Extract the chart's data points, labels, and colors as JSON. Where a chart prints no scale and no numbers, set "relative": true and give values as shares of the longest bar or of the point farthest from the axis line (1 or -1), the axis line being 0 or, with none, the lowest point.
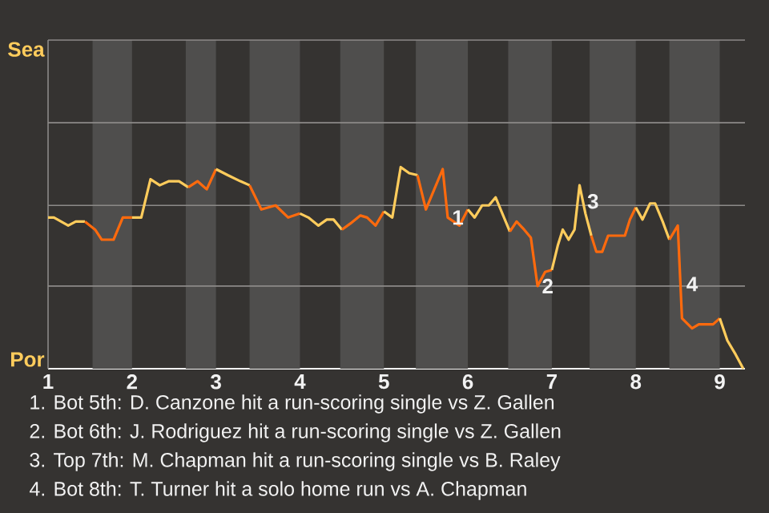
{
  "chart_data": {
    "type": "line",
    "relative": true,
    "xlim": [
      1,
      9.3
    ],
    "xticks": [
      1,
      2,
      3,
      4,
      5,
      6,
      7,
      8,
      9
    ],
    "ref_lines": [
      {
        "axis": "y",
        "value": 0.41,
        "color": "#8c8a88"
      },
      {
        "axis": "y",
        "value": 0.81,
        "color": "#8c8a88"
      },
      {
        "axis": "y",
        "value": 1.22,
        "color": "#8c8a88"
      },
      {
        "axis": "y",
        "value": 1.63,
        "color": "#8c8a88"
      }
    ],
    "bands": [
      {
        "axis": "x",
        "from": 1.53,
        "to": 2,
        "color": "#4f4e4d"
      },
      {
        "axis": "x",
        "from": 2.64,
        "to": 3,
        "color": "#4f4e4d"
      },
      {
        "axis": "x",
        "from": 3.4,
        "to": 4,
        "color": "#4f4e4d"
      },
      {
        "axis": "x",
        "from": 4.48,
        "to": 5,
        "color": "#4f4e4d"
      },
      {
        "axis": "x",
        "from": 5.38,
        "to": 6,
        "color": "#4f4e4d"
      },
      {
        "axis": "x",
        "from": 6.48,
        "to": 7,
        "color": "#4f4e4d"
      },
      {
        "axis": "x",
        "from": 7.45,
        "to": 8,
        "color": "#4f4e4d"
      },
      {
        "axis": "x",
        "from": 8.4,
        "to": 9,
        "color": "#4f4e4d"
      }
    ],
    "series": [
      {
        "color": "#ffcc5c",
        "x": [
          1.0,
          1.07,
          1.24,
          1.33,
          1.44
        ],
        "values": [
          0.75,
          0.75,
          0.71,
          0.73,
          0.73
        ]
      },
      {
        "color": "#ff6a0d",
        "x": [
          1.44,
          1.56,
          1.64,
          1.78,
          1.89,
          2.0
        ],
        "values": [
          0.73,
          0.69,
          0.64,
          0.64,
          0.75,
          0.75
        ]
      },
      {
        "color": "#ffcc5c",
        "x": [
          2.0,
          2.11,
          2.22,
          2.33,
          2.44,
          2.56,
          2.67
        ],
        "values": [
          0.75,
          0.75,
          0.94,
          0.91,
          0.93,
          0.93,
          0.9
        ]
      },
      {
        "color": "#ff6a0d",
        "x": [
          2.67,
          2.78,
          2.89,
          3.0
        ],
        "values": [
          0.9,
          0.93,
          0.89,
          0.99
        ]
      },
      {
        "color": "#ffcc5c",
        "x": [
          3.0,
          3.14,
          3.29,
          3.4
        ],
        "values": [
          0.99,
          0.96,
          0.93,
          0.91
        ]
      },
      {
        "color": "#ff6a0d",
        "x": [
          3.4,
          3.54,
          3.71,
          3.86,
          4.0
        ],
        "values": [
          0.91,
          0.79,
          0.81,
          0.75,
          0.77
        ]
      },
      {
        "color": "#ffcc5c",
        "x": [
          4.0,
          4.1,
          4.22,
          4.32,
          4.4,
          4.5
        ],
        "values": [
          0.77,
          0.75,
          0.71,
          0.74,
          0.74,
          0.69
        ]
      },
      {
        "color": "#ff6a0d",
        "x": [
          4.5,
          4.6,
          4.72,
          4.8,
          4.9,
          5.0
        ],
        "values": [
          0.69,
          0.72,
          0.76,
          0.75,
          0.71,
          0.78
        ]
      },
      {
        "color": "#ffcc5c",
        "x": [
          5.0,
          5.1,
          5.2,
          5.3,
          5.4
        ],
        "values": [
          0.78,
          0.75,
          1,
          0.97,
          0.96
        ]
      },
      {
        "color": "#ff6a0d",
        "x": [
          5.4,
          5.5,
          5.6,
          5.7,
          5.76,
          5.9,
          6.0
        ],
        "values": [
          0.96,
          0.79,
          0.89,
          0.99,
          0.75,
          0.71,
          0.79
        ]
      },
      {
        "color": "#ffcc5c",
        "x": [
          6.0,
          6.08,
          6.17,
          6.25,
          6.33,
          6.5
        ],
        "values": [
          0.79,
          0.75,
          0.81,
          0.81,
          0.85,
          0.68
        ]
      },
      {
        "color": "#ff6a0d",
        "x": [
          6.5,
          6.58,
          6.67,
          6.75,
          6.83,
          6.92,
          7.0
        ],
        "values": [
          0.68,
          0.73,
          0.69,
          0.65,
          0.41,
          0.48,
          0.49
        ]
      },
      {
        "color": "#ffcc5c",
        "x": [
          7.0,
          7.07,
          7.13,
          7.2,
          7.27,
          7.33,
          7.4,
          7.47
        ],
        "values": [
          0.49,
          0.61,
          0.69,
          0.64,
          0.69,
          0.91,
          0.77,
          0.66
        ]
      },
      {
        "color": "#ff6a0d",
        "x": [
          7.47,
          7.53,
          7.6,
          7.67,
          7.87,
          7.93,
          8.0
        ],
        "values": [
          0.66,
          0.58,
          0.58,
          0.66,
          0.66,
          0.74,
          0.8
        ]
      },
      {
        "color": "#ffcc5c",
        "x": [
          8.0,
          8.08,
          8.17,
          8.23,
          8.32,
          8.4
        ],
        "values": [
          0.8,
          0.74,
          0.82,
          0.82,
          0.73,
          0.64
        ]
      },
      {
        "color": "#ff6a0d",
        "x": [
          8.4,
          8.5,
          8.55,
          8.67,
          8.75,
          8.92,
          9.0
        ],
        "values": [
          0.64,
          0.71,
          0.25,
          0.2,
          0.22,
          0.22,
          0.25
        ]
      },
      {
        "color": "#ffcc5c",
        "x": [
          9.0,
          9.09,
          9.19,
          9.28
        ],
        "values": [
          0.25,
          0.14,
          0.07,
          0
        ]
      }
    ],
    "annotations": [
      "Sea",
      "Por",
      {
        "text": "1",
        "x": 5.76,
        "y": 0.75
      },
      {
        "text": "2",
        "x": 6.83,
        "y": 0.41
      },
      {
        "text": "3",
        "x": 7.37,
        "y": 0.83
      },
      {
        "text": "4",
        "x": 8.55,
        "y": 0.42
      },
      "1. Bot 5th: D. Canzone hit a run-scoring single vs Z. Gallen",
      "2. Bot 6th: J. Rodriguez hit a run-scoring single vs Z. Gallen",
      "3. Top 7th: M. Chapman hit a run-scoring single vs B. Raley",
      "4. Bot 8th: T. Turner hit a solo home run vs A. Chapman"
    ]
  }
}
